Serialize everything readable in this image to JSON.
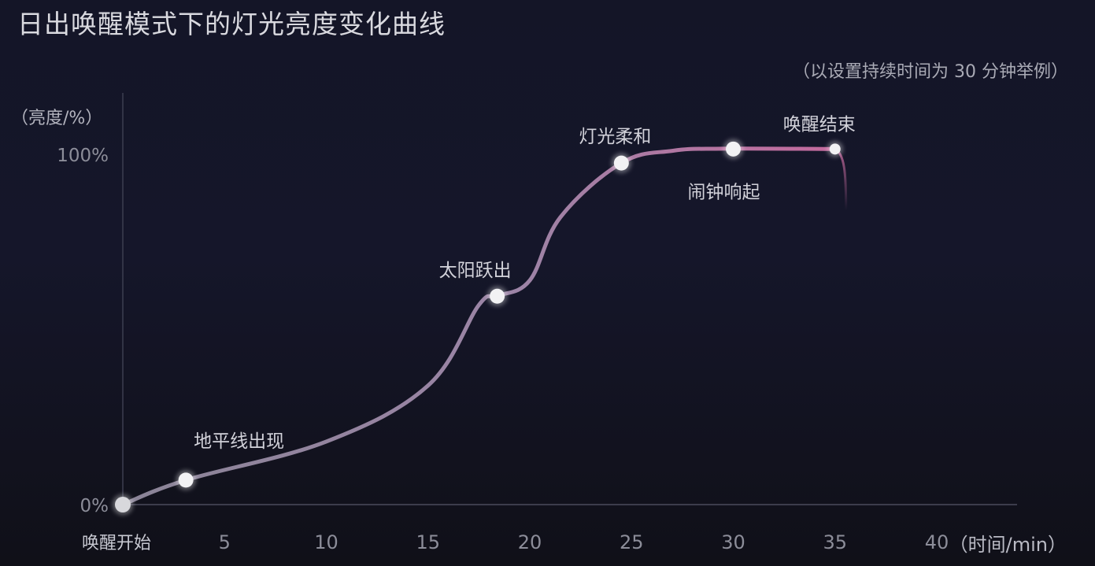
{
  "header": {
    "title": "日出唤醒模式下的灯光亮度变化曲线",
    "subtitle": "（以设置持续时间为 30 分钟举例）"
  },
  "colors": {
    "background": "#15162a",
    "curve_start": "#8a8497",
    "curve_end": "#c46a9e",
    "marker": "#f2f2f4",
    "axis": "#4a4b5c"
  },
  "chart_data": {
    "type": "line",
    "title": "日出唤醒模式下的灯光亮度变化曲线",
    "subtitle": "（以设置持续时间为 30 分钟举例）",
    "ylabel": "（亮度/%）",
    "xlabel": "（时间/min）",
    "xlim": [
      0,
      40
    ],
    "ylim": [
      0,
      100
    ],
    "x_ticks": [
      {
        "value": 0,
        "label": "唤醒开始"
      },
      {
        "value": 5,
        "label": "5"
      },
      {
        "value": 10,
        "label": "10"
      },
      {
        "value": 15,
        "label": "15"
      },
      {
        "value": 20,
        "label": "20"
      },
      {
        "value": 25,
        "label": "25"
      },
      {
        "value": 30,
        "label": "30"
      },
      {
        "value": 35,
        "label": "35"
      },
      {
        "value": 40,
        "label": "40"
      }
    ],
    "y_ticks": [
      {
        "value": 0,
        "label": "0%"
      },
      {
        "value": 100,
        "label": "100%"
      }
    ],
    "grid": false,
    "curve": [
      {
        "x": 0,
        "y": 0
      },
      {
        "x": 3.1,
        "y": 7
      },
      {
        "x": 10,
        "y": 18
      },
      {
        "x": 15,
        "y": 34
      },
      {
        "x": 17.5,
        "y": 57
      },
      {
        "x": 18.4,
        "y": 59.5
      },
      {
        "x": 20,
        "y": 64
      },
      {
        "x": 21.5,
        "y": 82
      },
      {
        "x": 24.5,
        "y": 97.5
      },
      {
        "x": 27,
        "y": 101
      },
      {
        "x": 29.5,
        "y": 101.6
      },
      {
        "x": 35,
        "y": 101.5
      }
    ],
    "key_points": [
      {
        "label": "唤醒开始",
        "x": 0,
        "y": 0
      },
      {
        "label": "地平线出现",
        "x": 3.1,
        "y": 7
      },
      {
        "label": "太阳跃出",
        "x": 18.4,
        "y": 59.5
      },
      {
        "label": "灯光柔和",
        "x": 24.5,
        "y": 97.5
      },
      {
        "label": "闹钟响起",
        "x": 30,
        "y": 101.5
      },
      {
        "label": "唤醒结束",
        "x": 35,
        "y": 101.5
      }
    ]
  }
}
